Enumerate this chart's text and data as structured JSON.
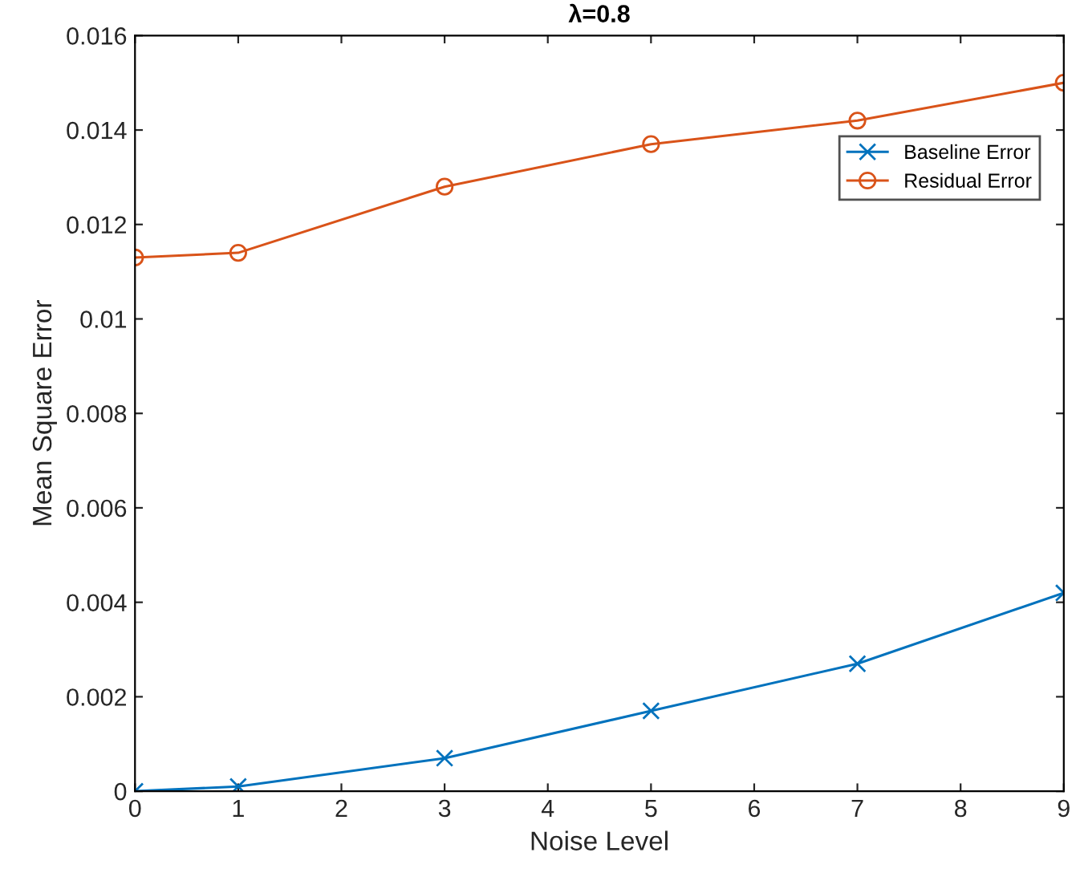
{
  "chart_data": {
    "type": "line",
    "title": "λ=0.8",
    "xlabel": "Noise Level",
    "ylabel": "Mean Square Error",
    "x": [
      0,
      1,
      3,
      5,
      7,
      9
    ],
    "series": [
      {
        "name": "Baseline Error",
        "color": "#0072bd",
        "marker": "cross",
        "values": [
          0,
          0.0001,
          0.0007,
          0.0017,
          0.0027,
          0.0042
        ]
      },
      {
        "name": "Residual Error",
        "color": "#d95319",
        "marker": "circle",
        "values": [
          0.0113,
          0.0114,
          0.0128,
          0.0137,
          0.0142,
          0.015
        ]
      }
    ],
    "xlim": [
      0,
      9
    ],
    "xticks": [
      0,
      1,
      2,
      3,
      4,
      5,
      6,
      7,
      8,
      9
    ],
    "ylim": [
      0,
      0.016
    ],
    "yticks": [
      {
        "value": 0,
        "label": "0"
      },
      {
        "value": 0.002,
        "label": "0.002"
      },
      {
        "value": 0.004,
        "label": "0.004"
      },
      {
        "value": 0.006,
        "label": "0.006"
      },
      {
        "value": 0.008,
        "label": "0.008"
      },
      {
        "value": 0.01,
        "label": "0.01"
      },
      {
        "value": 0.012,
        "label": "0.012"
      },
      {
        "value": 0.014,
        "label": "0.014"
      },
      {
        "value": 0.016,
        "label": "0.016"
      }
    ],
    "grid": false,
    "legend": "top right",
    "line_style": "solid"
  }
}
